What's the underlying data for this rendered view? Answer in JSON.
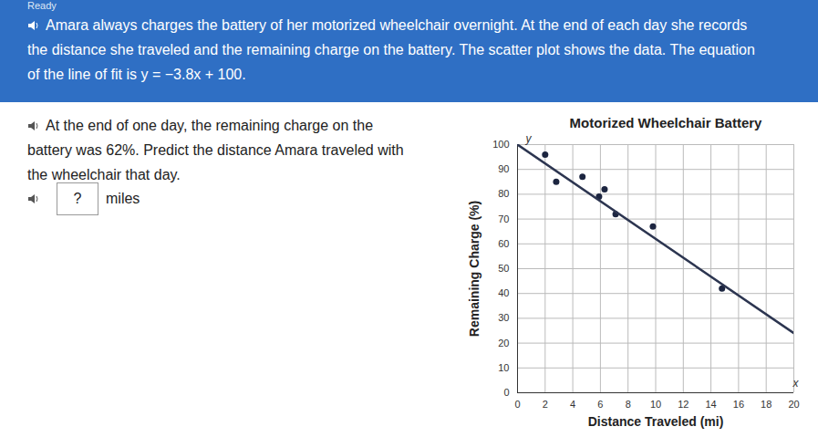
{
  "page": {
    "header": "Ready",
    "intro": "Amara always charges the battery of her motorized wheelchair overnight. At the end of each day she records the distance she traveled and the remaining charge on the battery. The scatter plot shows the data. The equation of the line of fit is y = −3.8x + 100.",
    "question": "At the end of one day, the remaining charge on the battery was 62%. Predict the distance Amara traveled with the wheelchair that day.",
    "answer_box": "?",
    "answer_unit": "miles"
  },
  "chart_data": {
    "type": "scatter",
    "title": "Motorized Wheelchair Battery",
    "x_label": "Distance Traveled (mi)",
    "y_label": "Remaining Charge (%)",
    "x_axis_letter": "x",
    "y_axis_letter": "y",
    "xlim": [
      0,
      20
    ],
    "ylim": [
      0,
      100
    ],
    "xticks": [
      0,
      2,
      4,
      6,
      8,
      10,
      12,
      14,
      16,
      18,
      20
    ],
    "yticks": [
      0,
      10,
      20,
      30,
      40,
      50,
      60,
      70,
      80,
      90,
      100
    ],
    "grid": true,
    "series": [
      {
        "type": "scatter",
        "color": "#1c2540",
        "marker": "circle",
        "x": [
          2,
          2.8,
          4.7,
          5.9,
          6.3,
          7.1,
          9.8,
          14.8
        ],
        "values": [
          96,
          85,
          87,
          79,
          82,
          72,
          67,
          42
        ]
      },
      {
        "type": "line",
        "color": "#2c3550",
        "line_style": "solid",
        "x": [
          0,
          20
        ],
        "values": [
          100,
          24
        ]
      }
    ]
  }
}
